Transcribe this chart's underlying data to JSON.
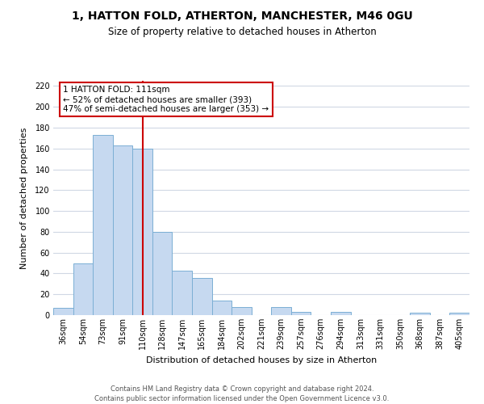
{
  "title": "1, HATTON FOLD, ATHERTON, MANCHESTER, M46 0GU",
  "subtitle": "Size of property relative to detached houses in Atherton",
  "xlabel": "Distribution of detached houses by size in Atherton",
  "ylabel": "Number of detached properties",
  "footer_line1": "Contains HM Land Registry data © Crown copyright and database right 2024.",
  "footer_line2": "Contains public sector information licensed under the Open Government Licence v3.0.",
  "bar_labels": [
    "36sqm",
    "54sqm",
    "73sqm",
    "91sqm",
    "110sqm",
    "128sqm",
    "147sqm",
    "165sqm",
    "184sqm",
    "202sqm",
    "221sqm",
    "239sqm",
    "257sqm",
    "276sqm",
    "294sqm",
    "313sqm",
    "331sqm",
    "350sqm",
    "368sqm",
    "387sqm",
    "405sqm"
  ],
  "bar_values": [
    7,
    50,
    173,
    163,
    160,
    80,
    43,
    36,
    14,
    8,
    0,
    8,
    3,
    0,
    3,
    0,
    0,
    0,
    2,
    0,
    2
  ],
  "bar_color": "#c6d9f0",
  "bar_edge_color": "#7bafd4",
  "vline_color": "#cc0000",
  "vline_index": 4,
  "annotation_title": "1 HATTON FOLD: 111sqm",
  "annotation_line1": "← 52% of detached houses are smaller (393)",
  "annotation_line2": "47% of semi-detached houses are larger (353) →",
  "annotation_box_color": "#ffffff",
  "annotation_box_edge": "#cc0000",
  "ylim": [
    0,
    225
  ],
  "yticks": [
    0,
    20,
    40,
    60,
    80,
    100,
    120,
    140,
    160,
    180,
    200,
    220
  ],
  "grid_color": "#d0d8e4",
  "title_fontsize": 10,
  "subtitle_fontsize": 8.5,
  "axis_label_fontsize": 8,
  "tick_fontsize": 7,
  "footer_fontsize": 6
}
